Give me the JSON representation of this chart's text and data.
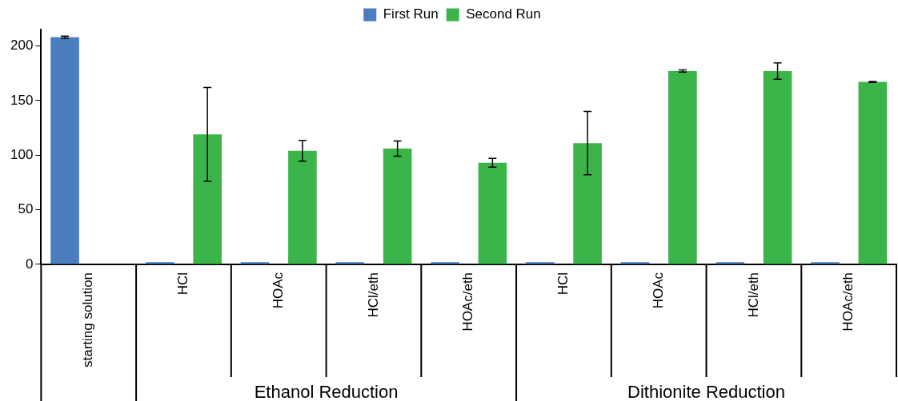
{
  "chart_data": {
    "type": "bar",
    "categories": [
      "starting solution",
      "HCl",
      "HOAc",
      "HCl/eth",
      "HOAc/eth",
      "HCl",
      "HOAc",
      "HCl/eth",
      "HOAc/eth"
    ],
    "series": [
      {
        "name": "First Run",
        "color": "#4a7ebf",
        "values": [
          208,
          2,
          2,
          2,
          2,
          2,
          2,
          2,
          2
        ],
        "errors": [
          1,
          null,
          null,
          null,
          null,
          null,
          null,
          null,
          null
        ]
      },
      {
        "name": "Second Run",
        "color": "#3bb54a",
        "values": [
          null,
          119,
          104,
          106,
          93,
          111,
          177,
          177,
          167
        ],
        "errors": [
          null,
          43,
          9.5,
          7,
          4,
          29,
          1,
          7.5,
          0.5
        ]
      }
    ],
    "ylim": [
      0,
      215
    ],
    "yticks": [
      0,
      50,
      100,
      150,
      200
    ],
    "annotations": [
      "Ethanol Reduction",
      "Dithionite Reduction"
    ],
    "grid": false,
    "legend": "top"
  }
}
